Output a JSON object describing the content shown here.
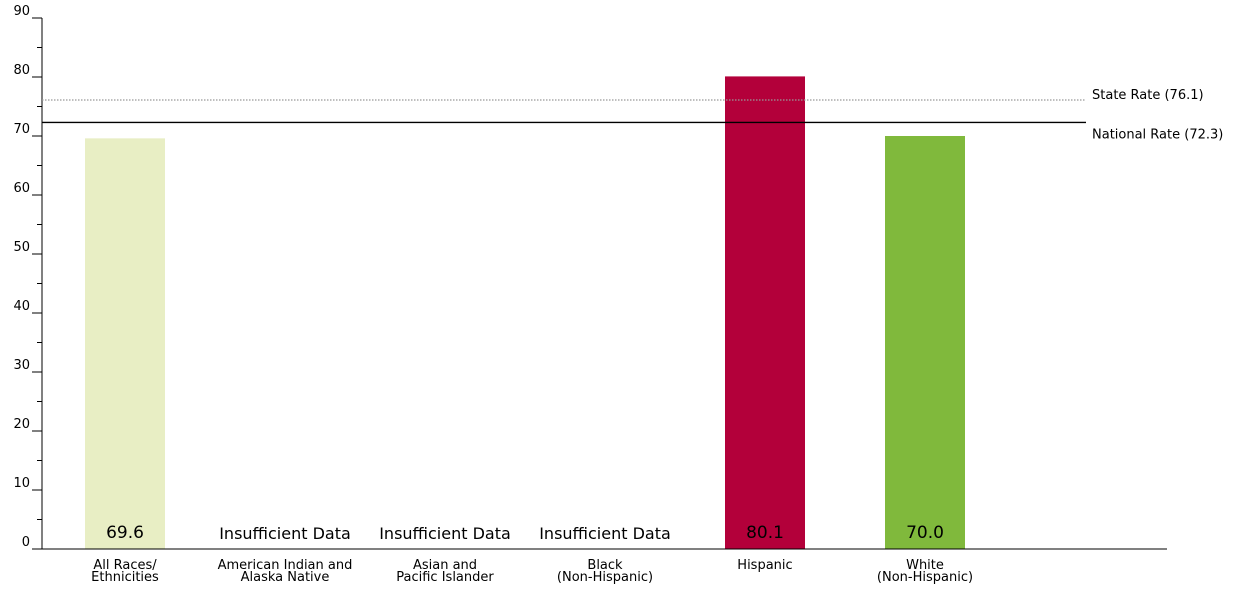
{
  "chart_data": {
    "type": "bar",
    "categories": [
      [
        "All Races/",
        "Ethnicities"
      ],
      [
        "American Indian and",
        "Alaska Native"
      ],
      [
        "Asian and",
        "Pacific Islander"
      ],
      [
        "Black",
        "(Non-Hispanic)"
      ],
      [
        "Hispanic"
      ],
      [
        "White",
        "(Non-Hispanic)"
      ]
    ],
    "values": [
      69.6,
      null,
      null,
      null,
      80.1,
      70.0
    ],
    "value_labels": [
      "69.6",
      "Insufficient Data",
      "Insufficient Data",
      "Insufficient Data",
      "80.1",
      "70.0"
    ],
    "bar_colors": [
      "#e8eec4",
      null,
      null,
      null,
      "#b3003a",
      "#80b93c"
    ],
    "ylim": [
      0,
      90
    ],
    "yticks": [
      0,
      10,
      20,
      30,
      40,
      50,
      60,
      70,
      80,
      90
    ],
    "title": "",
    "xlabel": "",
    "ylabel": "",
    "grid": false,
    "reference_lines": [
      {
        "label": "State Rate (76.1)",
        "value": 76.1,
        "style": "dotted",
        "color": "#999999"
      },
      {
        "label": "National Rate (72.3)",
        "value": 72.3,
        "style": "solid",
        "color": "#000000"
      }
    ]
  }
}
